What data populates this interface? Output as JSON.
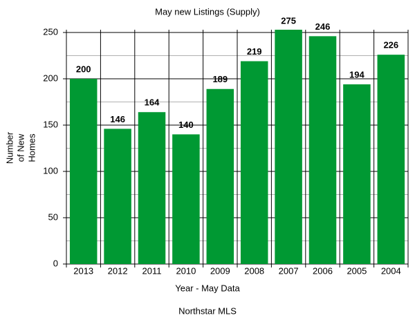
{
  "chart_data": {
    "type": "bar",
    "title": "May new Listings (Supply)",
    "x_label": "Year - May Data",
    "y_label": [
      "Number",
      "of New",
      "Homes"
    ],
    "footer": "Northstar MLS",
    "categories": [
      "2013",
      "2012",
      "2011",
      "2010",
      "2009",
      "2008",
      "2007",
      "2006",
      "2005",
      "2004"
    ],
    "values": [
      200,
      146,
      164,
      140,
      189,
      219,
      275,
      246,
      194,
      226
    ],
    "color": "#009933",
    "ylim": [
      0,
      250
    ],
    "yticks": [
      0,
      50,
      100,
      150,
      200,
      250
    ],
    "minor_yticks": [
      25,
      75,
      125,
      175,
      225
    ],
    "grid": true
  }
}
